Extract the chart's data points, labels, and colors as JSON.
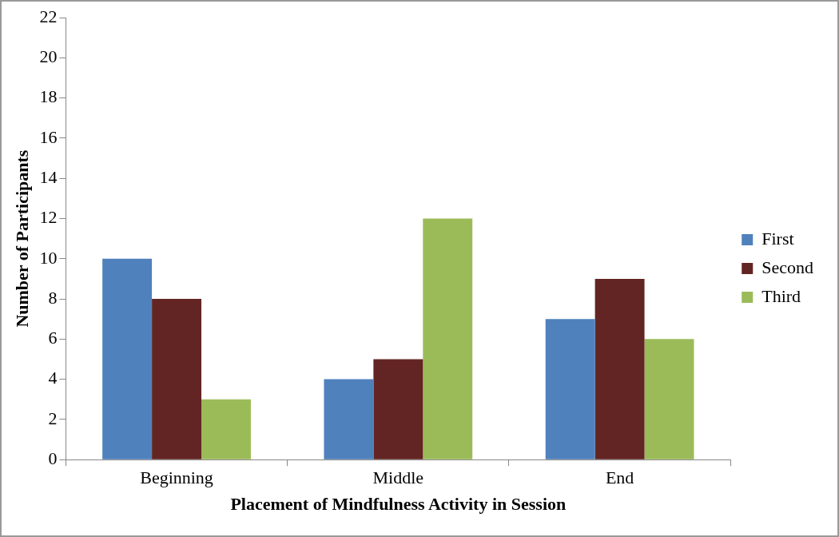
{
  "chart_data": {
    "type": "bar",
    "xlabel": "Placement of Mindfulness Activity in Session",
    "ylabel": "Number of Participants",
    "categories": [
      "Beginning",
      "Middle",
      "End"
    ],
    "series": [
      {
        "name": "First",
        "color": "#4f81bd",
        "values": [
          10,
          4,
          7
        ]
      },
      {
        "name": "Second",
        "color": "#632523",
        "values": [
          8,
          5,
          9
        ]
      },
      {
        "name": "Third",
        "color": "#9bbb59",
        "values": [
          3,
          12,
          6
        ]
      }
    ],
    "ylim": [
      0,
      22
    ],
    "yticks": [
      0,
      2,
      4,
      6,
      8,
      10,
      12,
      14,
      16,
      18,
      20,
      22
    ],
    "legend": "right"
  }
}
